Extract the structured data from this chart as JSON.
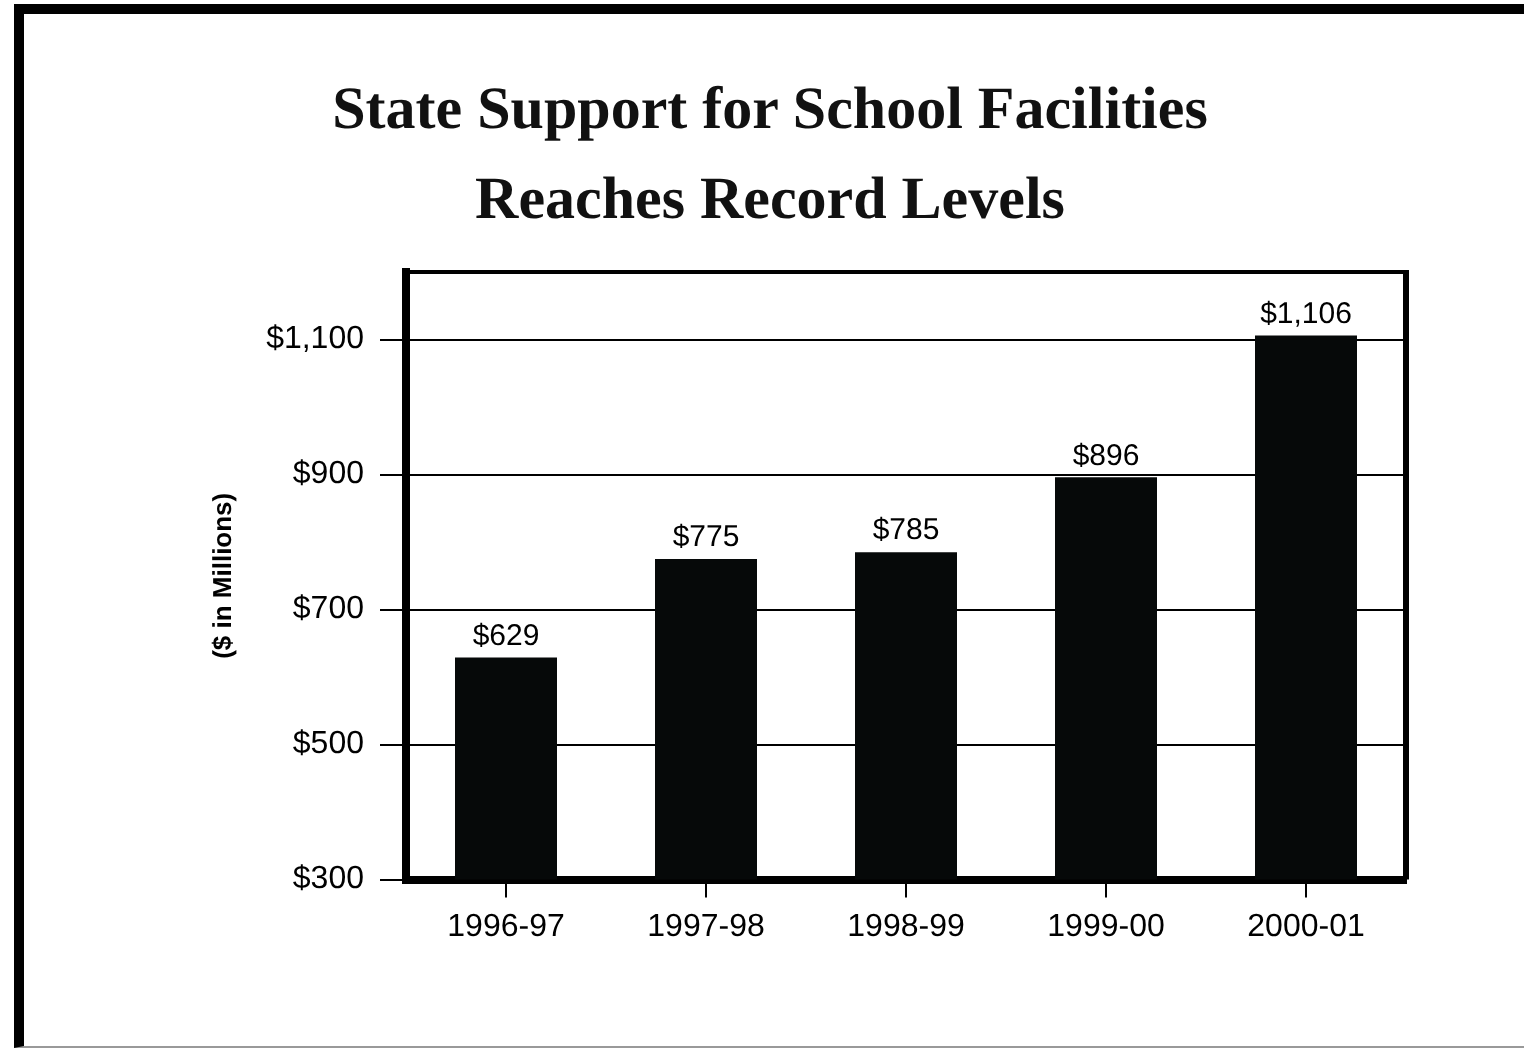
{
  "chart_data": {
    "type": "bar",
    "title": "State Support for School Facilities Reaches Record Levels",
    "ylabel": "($ in Millions)",
    "categories": [
      "1996-97",
      "1997-98",
      "1998-99",
      "1999-00",
      "2000-01"
    ],
    "values": [
      629,
      775,
      785,
      896,
      1106
    ],
    "value_labels": [
      "$629",
      "$775",
      "$785",
      "$896",
      "$1,106"
    ],
    "color": "#060909",
    "ylim": [
      300,
      1200
    ],
    "yticks": [
      {
        "value": 300,
        "label": "$300"
      },
      {
        "value": 500,
        "label": "$500"
      },
      {
        "value": 700,
        "label": "$700"
      },
      {
        "value": 900,
        "label": "$900"
      },
      {
        "value": 1100,
        "label": "$1,100"
      }
    ],
    "grid": "y"
  }
}
